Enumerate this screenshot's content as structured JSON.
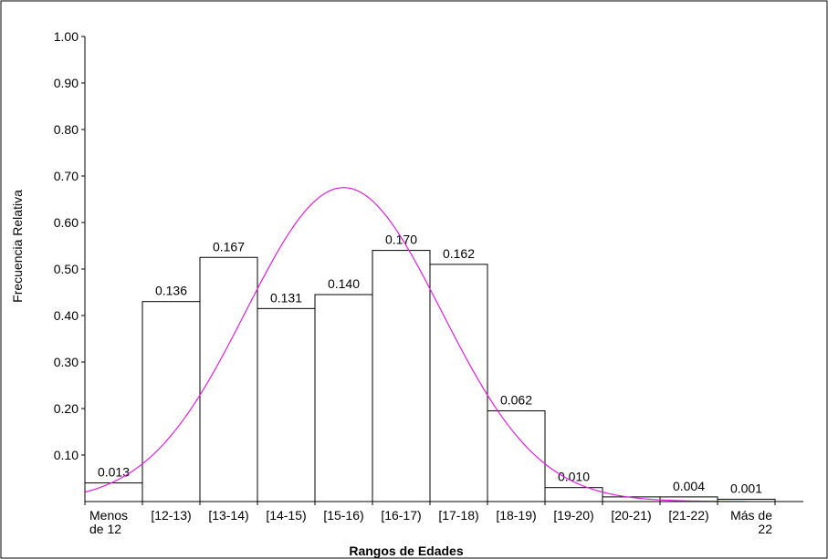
{
  "chart_data": {
    "type": "bar",
    "title": "",
    "xlabel": "Rangos de Edades",
    "ylabel": "Frecuencia Relativa",
    "ylim": [
      0,
      1.0
    ],
    "yticks": [
      "0.10",
      "0.20",
      "0.30",
      "0.40",
      "0.50",
      "0.60",
      "0.70",
      "0.80",
      "0.90",
      "1.00"
    ],
    "categories": [
      [
        "Menos",
        "de 12"
      ],
      [
        "[12-13)"
      ],
      [
        "[13-14)"
      ],
      [
        "[14-15)"
      ],
      [
        "[15-16)"
      ],
      [
        "[16-17)"
      ],
      [
        "[17-18)"
      ],
      [
        "[18-19)"
      ],
      [
        "[19-20)"
      ],
      [
        "[20-21)"
      ],
      [
        "[21-22)"
      ],
      [
        "Más de",
        "22"
      ]
    ],
    "values": [
      0.04,
      0.43,
      0.525,
      0.415,
      0.445,
      0.54,
      0.51,
      0.195,
      0.03,
      0.01,
      0.01,
      0.005
    ],
    "data_labels": [
      "0.013",
      "0.136",
      "0.167",
      "0.131",
      "0.140",
      "0.170",
      "0.162",
      "0.062",
      "0.010",
      "",
      "0.004",
      "0.001"
    ],
    "curve": {
      "type": "normal",
      "peak": 0.675,
      "peak_at_category": 4.5,
      "sd_in_categories": 1.7
    },
    "colors": {
      "bar_fill": "#ffffff",
      "bar_stroke": "#000000",
      "curve": "#e020e0",
      "axis": "#000000"
    },
    "grid": false,
    "legend": "none"
  }
}
